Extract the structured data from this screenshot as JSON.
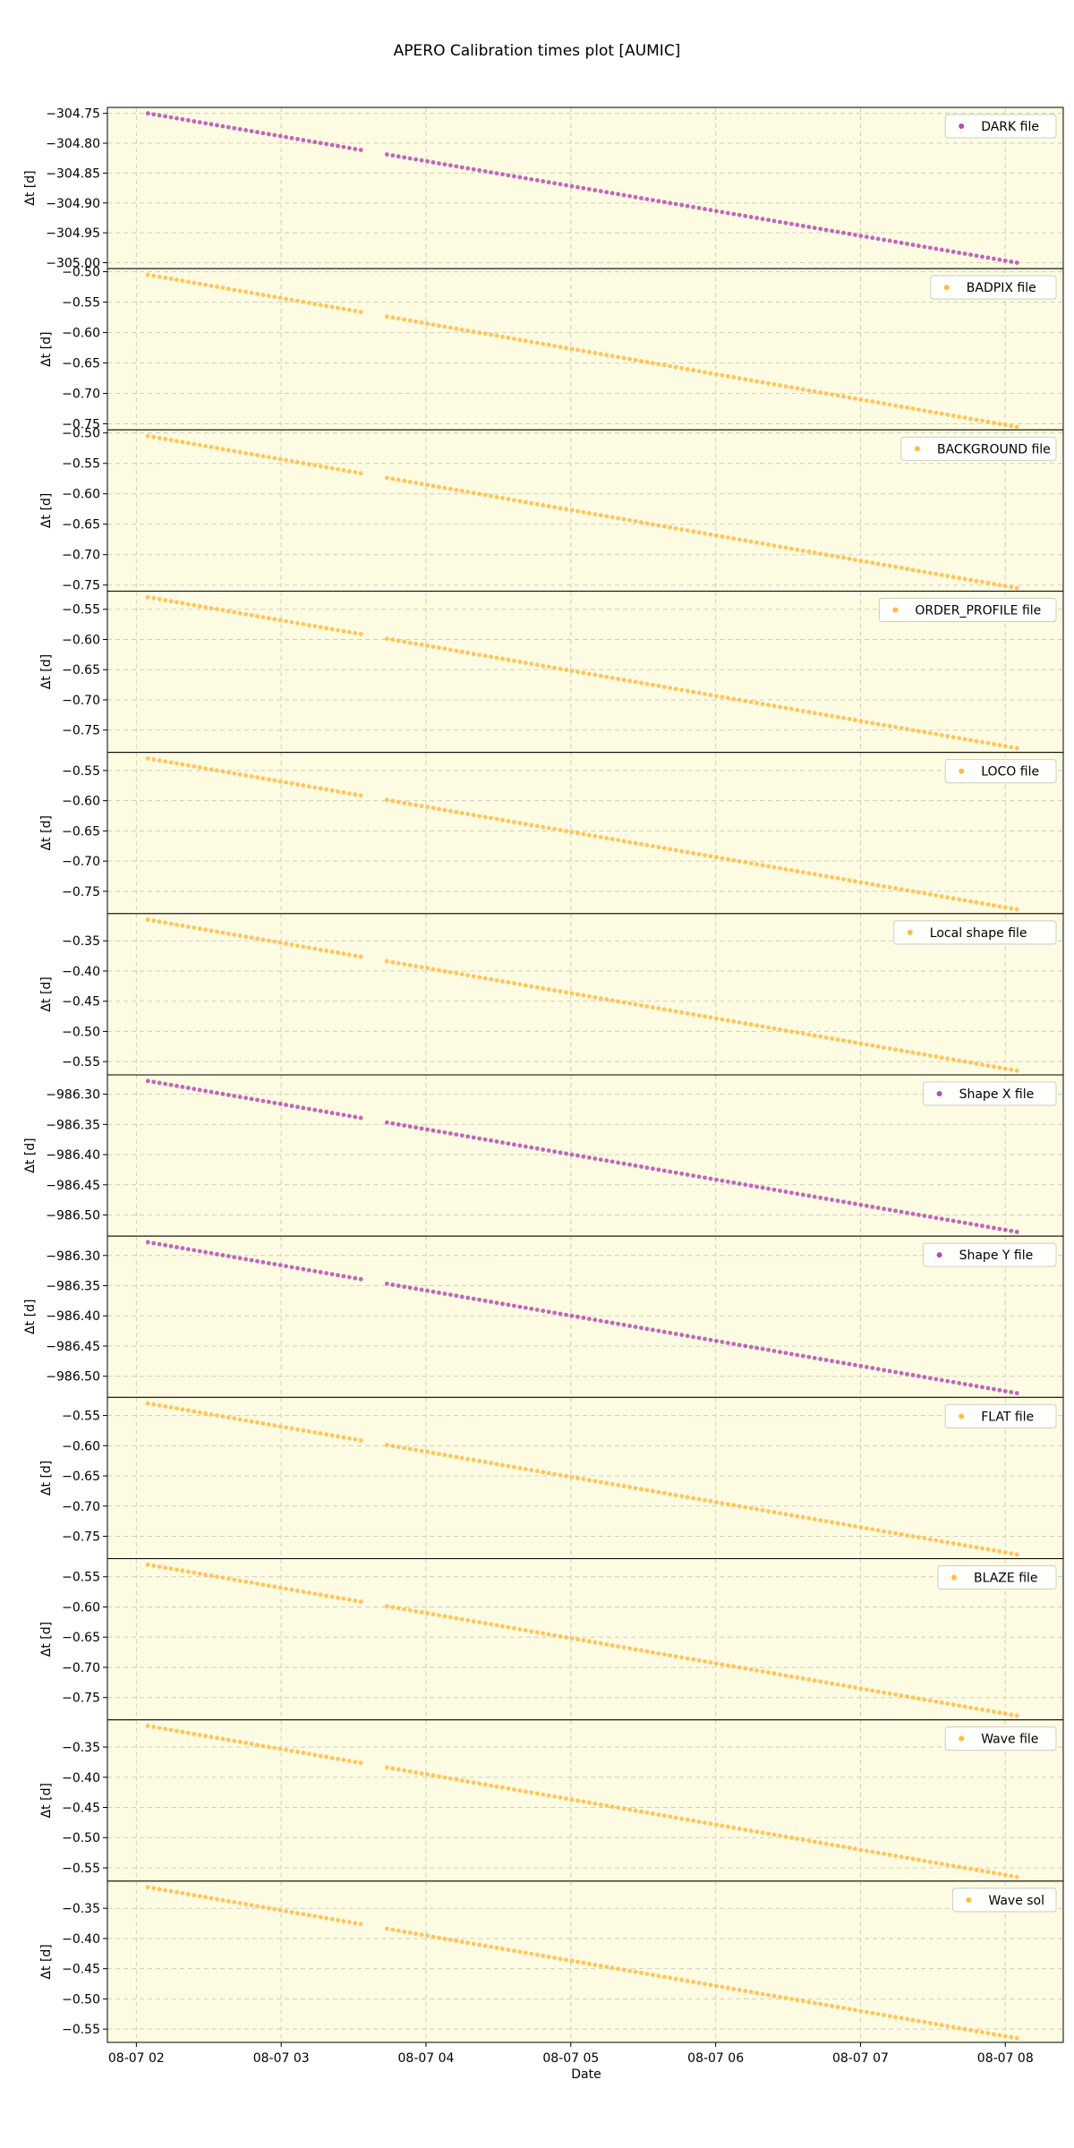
{
  "chart_data": {
    "type": "scatter",
    "title": "APERO Calibration times plot [AUMIC]",
    "xlabel": "Date",
    "x_range_hours": [
      1.8,
      8.4
    ],
    "x_ticks": [
      {
        "hour": 2,
        "label": "08-07 02"
      },
      {
        "hour": 3,
        "label": "08-07 03"
      },
      {
        "hour": 4,
        "label": "08-07 04"
      },
      {
        "hour": 5,
        "label": "08-07 05"
      },
      {
        "hour": 6,
        "label": "08-07 06"
      },
      {
        "hour": 7,
        "label": "08-07 07"
      },
      {
        "hour": 8,
        "label": "08-07 08"
      }
    ],
    "grid": true,
    "legend_position": "top-right",
    "point_groups": [
      {
        "start_hour": 2.08,
        "end_hour": 3.55,
        "count": 38
      },
      {
        "start_hour": 3.73,
        "end_hour": 8.08,
        "count": 110
      }
    ],
    "panels": [
      {
        "legend": "DARK file",
        "ylabel": "Δt [d]",
        "color": "#b54bb5",
        "ylim": [
          -305.01,
          -304.74
        ],
        "first_y": -304.75,
        "last_y": -305.0,
        "yticks": [
          -304.75,
          -304.8,
          -304.85,
          -304.9,
          -304.95,
          -305.0
        ],
        "yticklabels": [
          "−304.75",
          "−304.80",
          "−304.85",
          "−304.90",
          "−304.95",
          "−305.00"
        ]
      },
      {
        "legend": "BADPIX file",
        "ylabel": "Δt [d]",
        "color": "#ffbb44",
        "ylim": [
          -0.76,
          -0.495
        ],
        "first_y": -0.505,
        "last_y": -0.755,
        "yticks": [
          -0.5,
          -0.55,
          -0.6,
          -0.65,
          -0.7,
          -0.75
        ],
        "yticklabels": [
          "−0.50",
          "−0.55",
          "−0.60",
          "−0.65",
          "−0.70",
          "−0.75"
        ]
      },
      {
        "legend": "BACKGROUND file",
        "ylabel": "Δt [d]",
        "color": "#ffbb44",
        "ylim": [
          -0.76,
          -0.495
        ],
        "first_y": -0.505,
        "last_y": -0.755,
        "yticks": [
          -0.5,
          -0.55,
          -0.6,
          -0.65,
          -0.7,
          -0.75
        ],
        "yticklabels": [
          "−0.50",
          "−0.55",
          "−0.60",
          "−0.65",
          "−0.70",
          "−0.75"
        ]
      },
      {
        "legend": "ORDER_PROFILE file",
        "ylabel": "Δt [d]",
        "color": "#ffbb44",
        "ylim": [
          -0.787,
          -0.52
        ],
        "first_y": -0.53,
        "last_y": -0.78,
        "yticks": [
          -0.55,
          -0.6,
          -0.65,
          -0.7,
          -0.75
        ],
        "yticklabels": [
          "−0.55",
          "−0.60",
          "−0.65",
          "−0.70",
          "−0.75"
        ]
      },
      {
        "legend": "LOCO file",
        "ylabel": "Δt [d]",
        "color": "#ffbb44",
        "ylim": [
          -0.787,
          -0.52
        ],
        "first_y": -0.53,
        "last_y": -0.78,
        "yticks": [
          -0.55,
          -0.6,
          -0.65,
          -0.7,
          -0.75
        ],
        "yticklabels": [
          "−0.55",
          "−0.60",
          "−0.65",
          "−0.70",
          "−0.75"
        ]
      },
      {
        "legend": "Local shape file",
        "ylabel": "Δt [d]",
        "color": "#ffbb44",
        "ylim": [
          -0.572,
          -0.305
        ],
        "first_y": -0.315,
        "last_y": -0.565,
        "yticks": [
          -0.35,
          -0.4,
          -0.45,
          -0.5,
          -0.55
        ],
        "yticklabels": [
          "−0.35",
          "−0.40",
          "−0.45",
          "−0.50",
          "−0.55"
        ]
      },
      {
        "legend": "Shape X file",
        "ylabel": "Δt [d]",
        "color": "#b54bb5",
        "ylim": [
          -986.535,
          -986.268
        ],
        "first_y": -986.278,
        "last_y": -986.528,
        "yticks": [
          -986.3,
          -986.35,
          -986.4,
          -986.45,
          -986.5
        ],
        "yticklabels": [
          "−986.30",
          "−986.35",
          "−986.40",
          "−986.45",
          "−986.50"
        ]
      },
      {
        "legend": "Shape Y file",
        "ylabel": "Δt [d]",
        "color": "#b54bb5",
        "ylim": [
          -986.535,
          -986.268
        ],
        "first_y": -986.278,
        "last_y": -986.528,
        "yticks": [
          -986.3,
          -986.35,
          -986.4,
          -986.45,
          -986.5
        ],
        "yticklabels": [
          "−986.30",
          "−986.35",
          "−986.40",
          "−986.45",
          "−986.50"
        ]
      },
      {
        "legend": "FLAT file",
        "ylabel": "Δt [d]",
        "color": "#ffbb44",
        "ylim": [
          -0.787,
          -0.52
        ],
        "first_y": -0.53,
        "last_y": -0.78,
        "yticks": [
          -0.55,
          -0.6,
          -0.65,
          -0.7,
          -0.75
        ],
        "yticklabels": [
          "−0.55",
          "−0.60",
          "−0.65",
          "−0.70",
          "−0.75"
        ]
      },
      {
        "legend": "BLAZE file",
        "ylabel": "Δt [d]",
        "color": "#ffbb44",
        "ylim": [
          -0.787,
          -0.52
        ],
        "first_y": -0.53,
        "last_y": -0.78,
        "yticks": [
          -0.55,
          -0.6,
          -0.65,
          -0.7,
          -0.75
        ],
        "yticklabels": [
          "−0.55",
          "−0.60",
          "−0.65",
          "−0.70",
          "−0.75"
        ]
      },
      {
        "legend": "Wave file",
        "ylabel": "Δt [d]",
        "color": "#ffbb44",
        "ylim": [
          -0.572,
          -0.305
        ],
        "first_y": -0.315,
        "last_y": -0.565,
        "yticks": [
          -0.35,
          -0.4,
          -0.45,
          -0.5,
          -0.55
        ],
        "yticklabels": [
          "−0.35",
          "−0.40",
          "−0.45",
          "−0.50",
          "−0.55"
        ]
      },
      {
        "legend": "Wave sol",
        "ylabel": "Δt [d]",
        "color": "#ffbb44",
        "ylim": [
          -0.572,
          -0.305
        ],
        "first_y": -0.315,
        "last_y": -0.565,
        "yticks": [
          -0.35,
          -0.4,
          -0.45,
          -0.5,
          -0.55
        ],
        "yticklabels": [
          "−0.35",
          "−0.40",
          "−0.45",
          "−0.50",
          "−0.55"
        ]
      }
    ]
  }
}
